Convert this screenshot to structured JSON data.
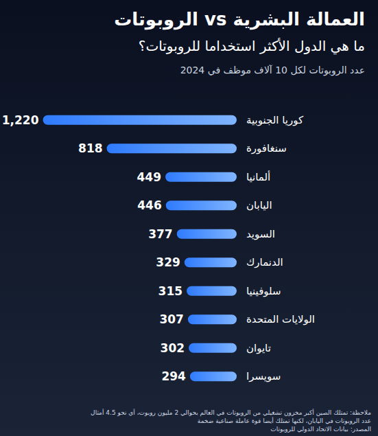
{
  "chart_data": {
    "type": "bar",
    "title": "الروبوتات vs العمالة البشرية",
    "subtitle": "ما هي الدول الأكثر استخداما للروبوتات؟",
    "axis_label": "عدد الروبوتات لكل 10 آلاف موظف في 2024",
    "categories": [
      "كوريا الجنوبية",
      "سنغافورة",
      "ألمانيا",
      "اليابان",
      "السويد",
      "الدنمارك",
      "سلوفينيا",
      "الولايات المتحدة",
      "تايوان",
      "سويسرا"
    ],
    "values": [
      1220,
      818,
      449,
      446,
      377,
      329,
      315,
      307,
      302,
      294
    ],
    "value_labels": [
      "1,220",
      "818",
      "449",
      "446",
      "377",
      "329",
      "315",
      "307",
      "302",
      "294"
    ],
    "color": "#2f7bff",
    "xlim": [
      0,
      1300
    ],
    "orientation": "horizontal",
    "data_labels": true,
    "tick_labels": false,
    "grid": false,
    "notes": [
      "ملاحظة: تمتلك الصين أكبر مخزون تشغيلي من الروبوتات في العالم بحوالي 2 مليون روبوت، أي نحو 4.5 أمثال",
      "عدد الروبوتات في اليابان، لكنها تمتلك أيضا قوة عاملة صناعية ضخمة"
    ],
    "source": "المصدر: بيانات الاتحاد الدولي للروبوتات"
  }
}
